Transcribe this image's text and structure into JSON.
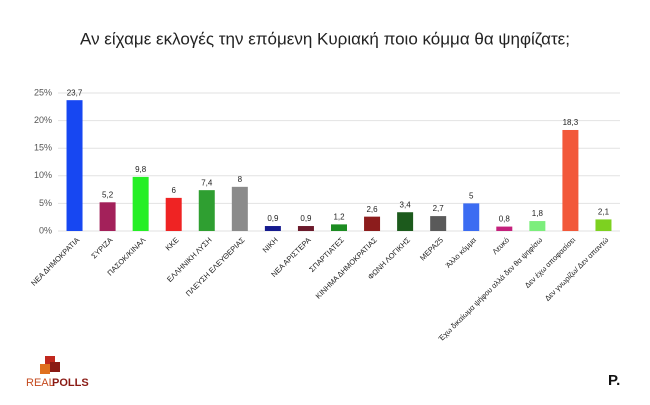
{
  "chart_data": {
    "type": "bar",
    "title": "Αν είχαμε εκλογές την επόμενη Κυριακή ποιο κόμμα θα ψηφίζατε;",
    "categories": [
      "ΝΕΑ ΔΗΜΟΚΡΑΤΙΑ",
      "ΣΥΡΙΖΑ",
      "ΠΑΣΟΚ/ΚΙΝΑΛ",
      "ΚΚΕ",
      "ΕΛΛΗΝΙΚΗ ΛΥΣΗ",
      "ΠΛΕΥΣΗ ΕΛΕΥΘΕΡΙΑΣ",
      "ΝΙΚΗ",
      "ΝΕΑ ΑΡΙΣΤΕΡΑ",
      "ΣΠΑΡΤΙΑΤΕΣ",
      "ΚΙΝΗΜΑ ΔΗΜΟΚΡΑΤΙΑΣ",
      "ΦΩΝΗ ΛΟΓΙΚΗΣ",
      "ΜΕΡΑ25",
      "Άλλο κόμμα",
      "Λευκό",
      "Έχω δικαίωμα ψήφου αλλά δεν θα ψηφίσω",
      "Δεν έχω αποφασίσει",
      "Δεν γνωρίζω/ Δεν απαντώ"
    ],
    "values": [
      23.7,
      5.2,
      9.8,
      6,
      7.4,
      8,
      0.9,
      0.9,
      1.2,
      2.6,
      3.4,
      2.7,
      5,
      0.8,
      1.8,
      18.3,
      2.1
    ],
    "value_labels": [
      "23,7",
      "5,2",
      "9,8",
      "6",
      "7,4",
      "8",
      "0,9",
      "0,9",
      "1,2",
      "2,6",
      "3,4",
      "2,7",
      "5",
      "0,8",
      "1,8",
      "18,3",
      "2,1"
    ],
    "colors": [
      "#1747f2",
      "#a3215a",
      "#25ef25",
      "#ef2323",
      "#2f9f31",
      "#8b8b8b",
      "#151a8e",
      "#6b1a2b",
      "#1c8c22",
      "#8c1c1c",
      "#1c5a1c",
      "#5a5a5a",
      "#3b6cf2",
      "#c4207c",
      "#7cee7c",
      "#f2583a",
      "#7dd120"
    ],
    "ylim": [
      0,
      25
    ],
    "yticks": [
      {
        "value": 0,
        "label": "0%"
      },
      {
        "value": 5,
        "label": "5%"
      },
      {
        "value": 10,
        "label": "10%"
      },
      {
        "value": 15,
        "label": "15%"
      },
      {
        "value": 20,
        "label": "20%"
      },
      {
        "value": 25,
        "label": "25%"
      }
    ],
    "grid": true
  },
  "branding": {
    "logo_left_a": "REAL",
    "logo_left_b": "POLLS",
    "logo_right": "P."
  }
}
